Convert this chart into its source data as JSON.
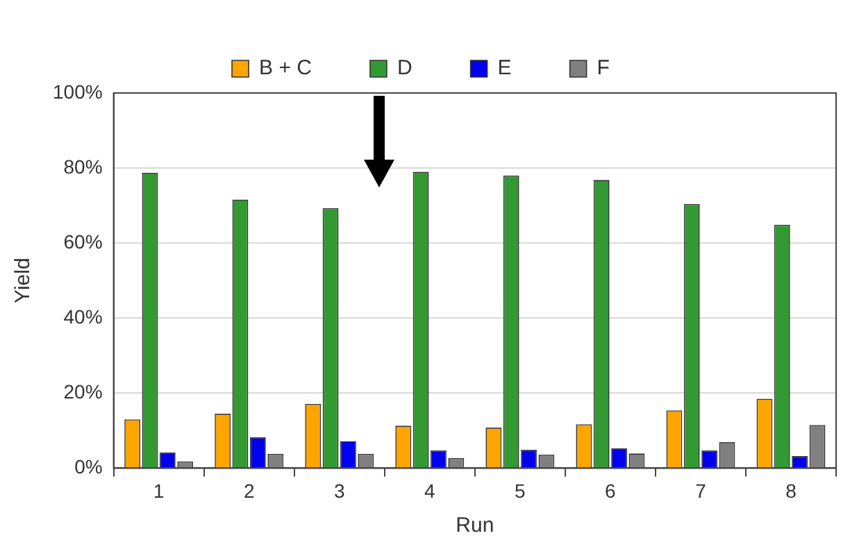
{
  "chart_data": {
    "type": "bar",
    "xlabel": "Run",
    "ylabel": "Yield",
    "categories": [
      "1",
      "2",
      "3",
      "4",
      "5",
      "6",
      "7",
      "8"
    ],
    "series": [
      {
        "name": "B + C",
        "color": "#ffa500",
        "values": [
          13.0,
          14.5,
          17.1,
          11.3,
          10.8,
          11.7,
          15.4,
          18.5
        ]
      },
      {
        "name": "D",
        "color": "#339933",
        "values": [
          78.7,
          71.6,
          69.3,
          79.0,
          78.0,
          76.8,
          70.4,
          64.9
        ]
      },
      {
        "name": "E",
        "color": "#0000ee",
        "values": [
          4.2,
          8.2,
          7.2,
          4.7,
          4.9,
          5.3,
          4.7,
          3.2
        ]
      },
      {
        "name": "F",
        "color": "#808080",
        "values": [
          1.8,
          3.8,
          3.8,
          2.7,
          3.6,
          3.9,
          6.9,
          11.5
        ]
      }
    ],
    "ylim": [
      0,
      100
    ],
    "yticks": [
      {
        "value": 0,
        "label": "0%"
      },
      {
        "value": 20,
        "label": "20%"
      },
      {
        "value": 40,
        "label": "40%"
      },
      {
        "value": 60,
        "label": "60%"
      },
      {
        "value": 80,
        "label": "80%"
      },
      {
        "value": 100,
        "label": "100%"
      }
    ],
    "grid": "y",
    "legend": "top"
  }
}
